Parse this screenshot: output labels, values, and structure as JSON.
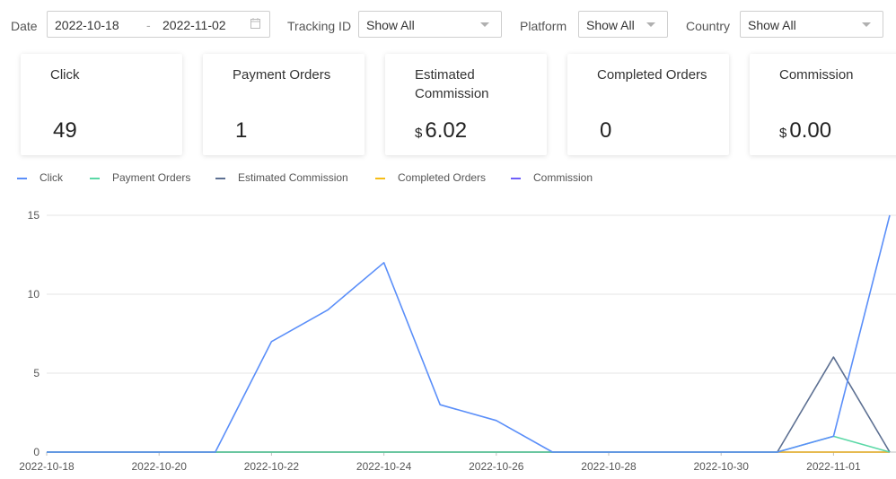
{
  "filters": {
    "date": {
      "label": "Date",
      "start": "2022-10-18",
      "separator": "-",
      "end": "2022-11-02"
    },
    "tracking_id": {
      "label": "Tracking ID",
      "value": "Show All"
    },
    "platform": {
      "label": "Platform",
      "value": "Show All"
    },
    "country": {
      "label": "Country",
      "value": "Show All"
    }
  },
  "cards": [
    {
      "title": "Click",
      "currency": "",
      "value": "49"
    },
    {
      "title": "Payment Orders",
      "currency": "",
      "value": "1"
    },
    {
      "title": "Estimated Commission",
      "currency": "$",
      "value": "6.02"
    },
    {
      "title": "Completed Orders",
      "currency": "",
      "value": "0"
    },
    {
      "title": "Commission",
      "currency": "$",
      "value": "0.00"
    }
  ],
  "icons": {
    "calendar": "calendar-icon",
    "dropdown": "chevron-down-icon"
  },
  "chart_data": {
    "type": "line",
    "x": [
      "2022-10-18",
      "2022-10-19",
      "2022-10-20",
      "2022-10-21",
      "2022-10-22",
      "2022-10-23",
      "2022-10-24",
      "2022-10-25",
      "2022-10-26",
      "2022-10-27",
      "2022-10-28",
      "2022-10-29",
      "2022-10-30",
      "2022-10-31",
      "2022-11-01",
      "2022-11-02"
    ],
    "xticks": [
      "2022-10-18",
      "2022-10-20",
      "2022-10-22",
      "2022-10-24",
      "2022-10-26",
      "2022-10-28",
      "2022-10-30",
      "2022-11-01"
    ],
    "yticks": [
      0,
      5,
      10,
      15
    ],
    "ylim": [
      0,
      15
    ],
    "grid": true,
    "legend_position": "top-left",
    "series": [
      {
        "name": "Click",
        "color": "#5b8ff9",
        "values": [
          0,
          0,
          0,
          0,
          7,
          9,
          12,
          3,
          2,
          0,
          0,
          0,
          0,
          0,
          1,
          15
        ]
      },
      {
        "name": "Payment Orders",
        "color": "#5ad8a6",
        "values": [
          0,
          0,
          0,
          0,
          0,
          0,
          0,
          0,
          0,
          0,
          0,
          0,
          0,
          0,
          1,
          0
        ]
      },
      {
        "name": "Estimated Commission",
        "color": "#5d7092",
        "values": [
          0,
          0,
          0,
          0,
          0,
          0,
          0,
          0,
          0,
          0,
          0,
          0,
          0,
          0,
          6.02,
          0
        ]
      },
      {
        "name": "Completed Orders",
        "color": "#f6bd16",
        "values": [
          0,
          0,
          0,
          0,
          0,
          0,
          0,
          0,
          0,
          0,
          0,
          0,
          0,
          0,
          0,
          0
        ]
      },
      {
        "name": "Commission",
        "color": "#6f5ef9",
        "values": [
          0,
          0,
          0,
          0,
          0,
          0,
          0,
          0,
          0,
          0,
          0,
          0,
          0,
          0,
          0,
          0
        ]
      }
    ]
  }
}
